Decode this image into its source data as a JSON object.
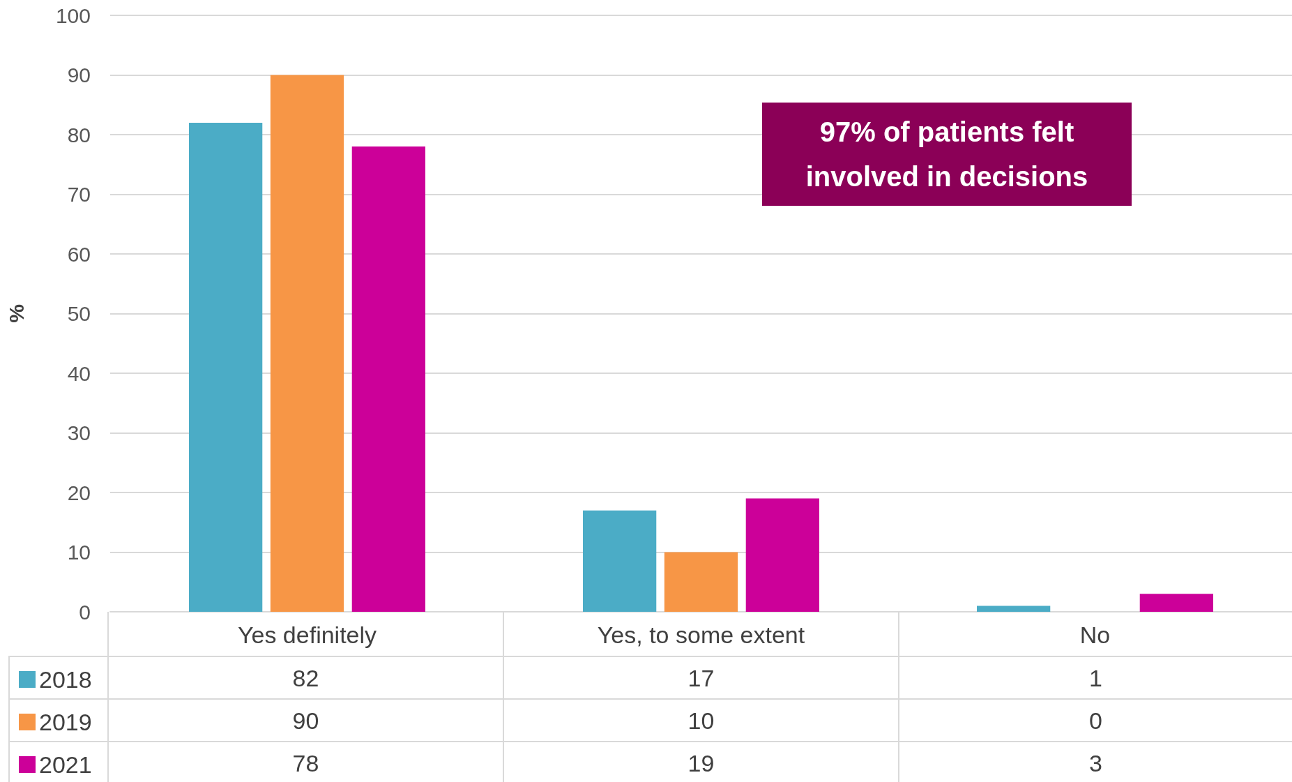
{
  "chart_data": {
    "type": "bar",
    "ylabel": "%",
    "categories": [
      "Yes definitely",
      "Yes, to some extent",
      "No"
    ],
    "series": [
      {
        "name": "2018",
        "color": "#4bacc6",
        "values": [
          82,
          17,
          1
        ]
      },
      {
        "name": "2019",
        "color": "#f79646",
        "values": [
          90,
          10,
          0
        ]
      },
      {
        "name": "2021",
        "color": "#cc0099",
        "values": [
          78,
          19,
          3
        ]
      }
    ],
    "ylim": [
      0,
      100
    ],
    "yticks": [
      0,
      10,
      20,
      30,
      40,
      50,
      60,
      70,
      80,
      90,
      100
    ],
    "grid": "y",
    "legend": "bottom left",
    "data_labels": true,
    "annotations": [
      "97% of patients felt involved in decisions"
    ]
  }
}
